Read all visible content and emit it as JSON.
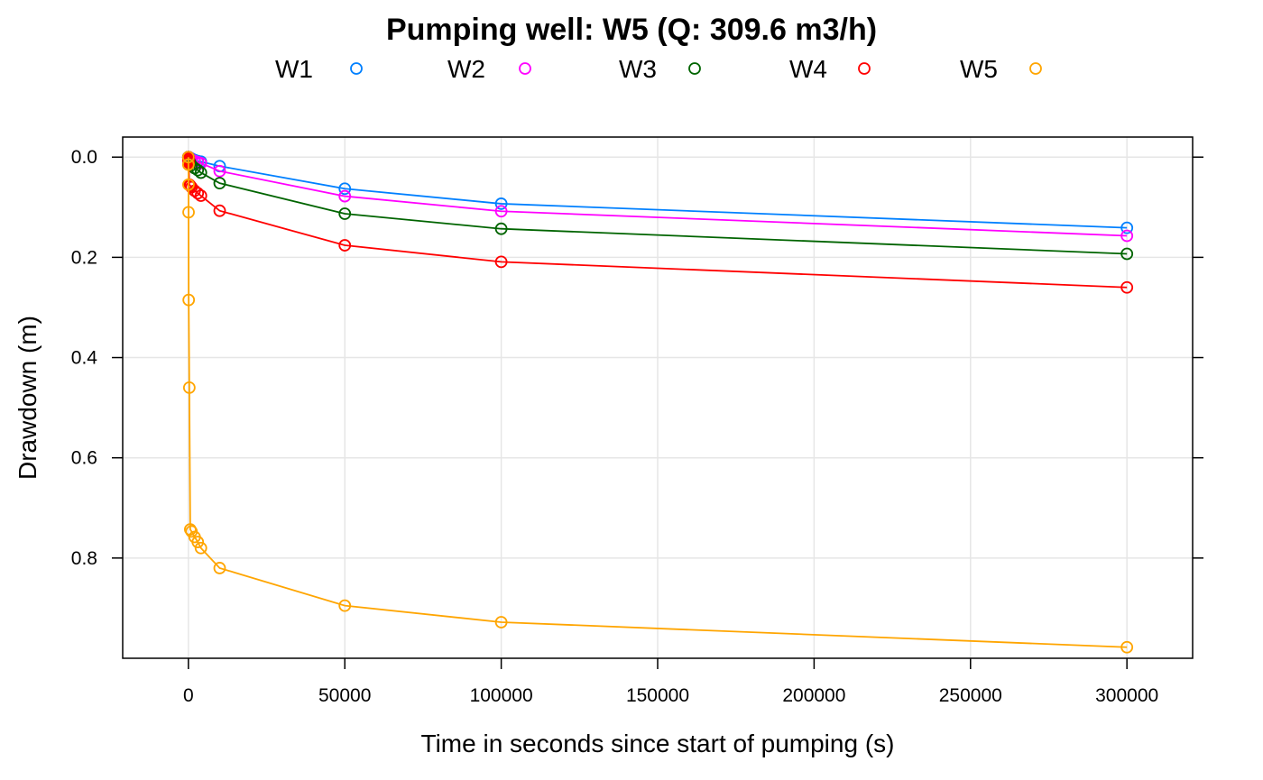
{
  "chart_data": {
    "type": "line",
    "title": "Pumping well: W5 (Q: 309.6 m3/h)",
    "xlabel": "Time in seconds since start of pumping (s)",
    "ylabel": "Drawdown (m)",
    "xlim": [
      -21000,
      321000
    ],
    "ylim": [
      1.0,
      -0.04
    ],
    "y_reversed": true,
    "grid": true,
    "legend_position": "top",
    "x_ticks": [
      0,
      50000,
      100000,
      150000,
      200000,
      250000,
      300000
    ],
    "x_tick_labels": [
      "0",
      "50000",
      "100000",
      "150000",
      "200000",
      "250000",
      "300000"
    ],
    "y_ticks": [
      0.0,
      0.2,
      0.4,
      0.6,
      0.8
    ],
    "y_tick_labels": [
      "0.0",
      "0.2",
      "0.4",
      "0.6",
      "0.8"
    ],
    "series": [
      {
        "name": "W1",
        "color": "#0080ff",
        "x": [
          1,
          10,
          30,
          60,
          100,
          300,
          600,
          1000,
          2000,
          3000,
          4000,
          10000,
          50000,
          100000,
          300000
        ],
        "y": [
          0.0,
          0.0,
          0.0,
          0.0,
          0.0,
          0.001,
          0.002,
          0.003,
          0.006,
          0.008,
          0.009,
          0.018,
          0.063,
          0.093,
          0.141
        ]
      },
      {
        "name": "W2",
        "color": "#ff00ff",
        "x": [
          1,
          10,
          30,
          60,
          100,
          300,
          600,
          1000,
          2000,
          3000,
          4000,
          10000,
          50000,
          100000,
          300000
        ],
        "y": [
          0.0,
          0.0,
          0.0,
          0.0,
          0.001,
          0.002,
          0.003,
          0.005,
          0.008,
          0.01,
          0.012,
          0.028,
          0.078,
          0.108,
          0.157
        ]
      },
      {
        "name": "W3",
        "color": "#006400",
        "x": [
          1,
          10,
          30,
          60,
          100,
          300,
          600,
          1000,
          2000,
          3000,
          4000,
          10000,
          50000,
          100000,
          300000
        ],
        "y": [
          0.0,
          0.0,
          0.001,
          0.002,
          0.004,
          0.008,
          0.012,
          0.016,
          0.022,
          0.026,
          0.031,
          0.052,
          0.113,
          0.143,
          0.193
        ]
      },
      {
        "name": "W4",
        "color": "#ff0000",
        "x": [
          1,
          10,
          30,
          60,
          100,
          300,
          600,
          1000,
          2000,
          3000,
          4000,
          10000,
          50000,
          100000,
          300000
        ],
        "y": [
          0.0,
          0.003,
          0.005,
          0.008,
          0.011,
          0.055,
          0.057,
          0.06,
          0.067,
          0.072,
          0.077,
          0.107,
          0.176,
          0.209,
          0.26
        ]
      },
      {
        "name": "W5",
        "color": "#ffa500",
        "x": [
          1,
          10,
          30,
          60,
          100,
          300,
          600,
          1000,
          2000,
          3000,
          4000,
          10000,
          50000,
          100000,
          300000
        ],
        "y": [
          0.0,
          0.015,
          0.055,
          0.11,
          0.285,
          0.46,
          0.743,
          0.747,
          0.758,
          0.768,
          0.78,
          0.82,
          0.895,
          0.928,
          0.978
        ]
      }
    ]
  }
}
